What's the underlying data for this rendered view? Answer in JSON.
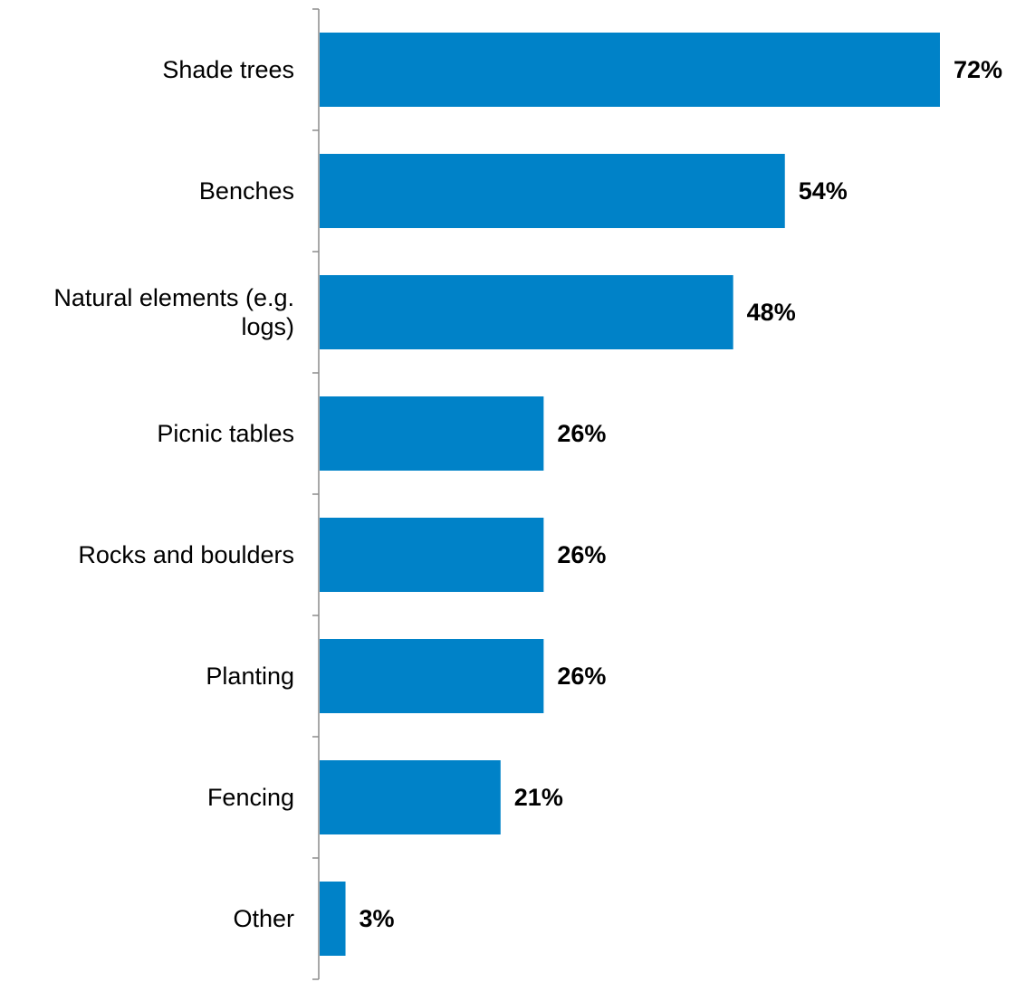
{
  "chart_data": {
    "type": "bar",
    "orientation": "horizontal",
    "categories": [
      "Shade trees",
      "Benches",
      "Natural elements (e.g. logs)",
      "Picnic tables",
      "Rocks and boulders",
      "Planting",
      "Fencing",
      "Other"
    ],
    "category_lines": [
      [
        "Shade trees"
      ],
      [
        "Benches"
      ],
      [
        "Natural elements (e.g.",
        "logs)"
      ],
      [
        "Picnic tables"
      ],
      [
        "Rocks and boulders"
      ],
      [
        "Planting"
      ],
      [
        "Fencing"
      ],
      [
        "Other"
      ]
    ],
    "values": [
      72,
      54,
      48,
      26,
      26,
      26,
      21,
      3
    ],
    "value_labels": [
      "72%",
      "54%",
      "48%",
      "26%",
      "26%",
      "26%",
      "21%",
      "3%"
    ],
    "title": "",
    "xlabel": "",
    "ylabel": "",
    "xlim": [
      0,
      72
    ],
    "grid": false,
    "legend": "none",
    "bar_color": "#0082c8",
    "axis_color": "#8c8c8c"
  }
}
